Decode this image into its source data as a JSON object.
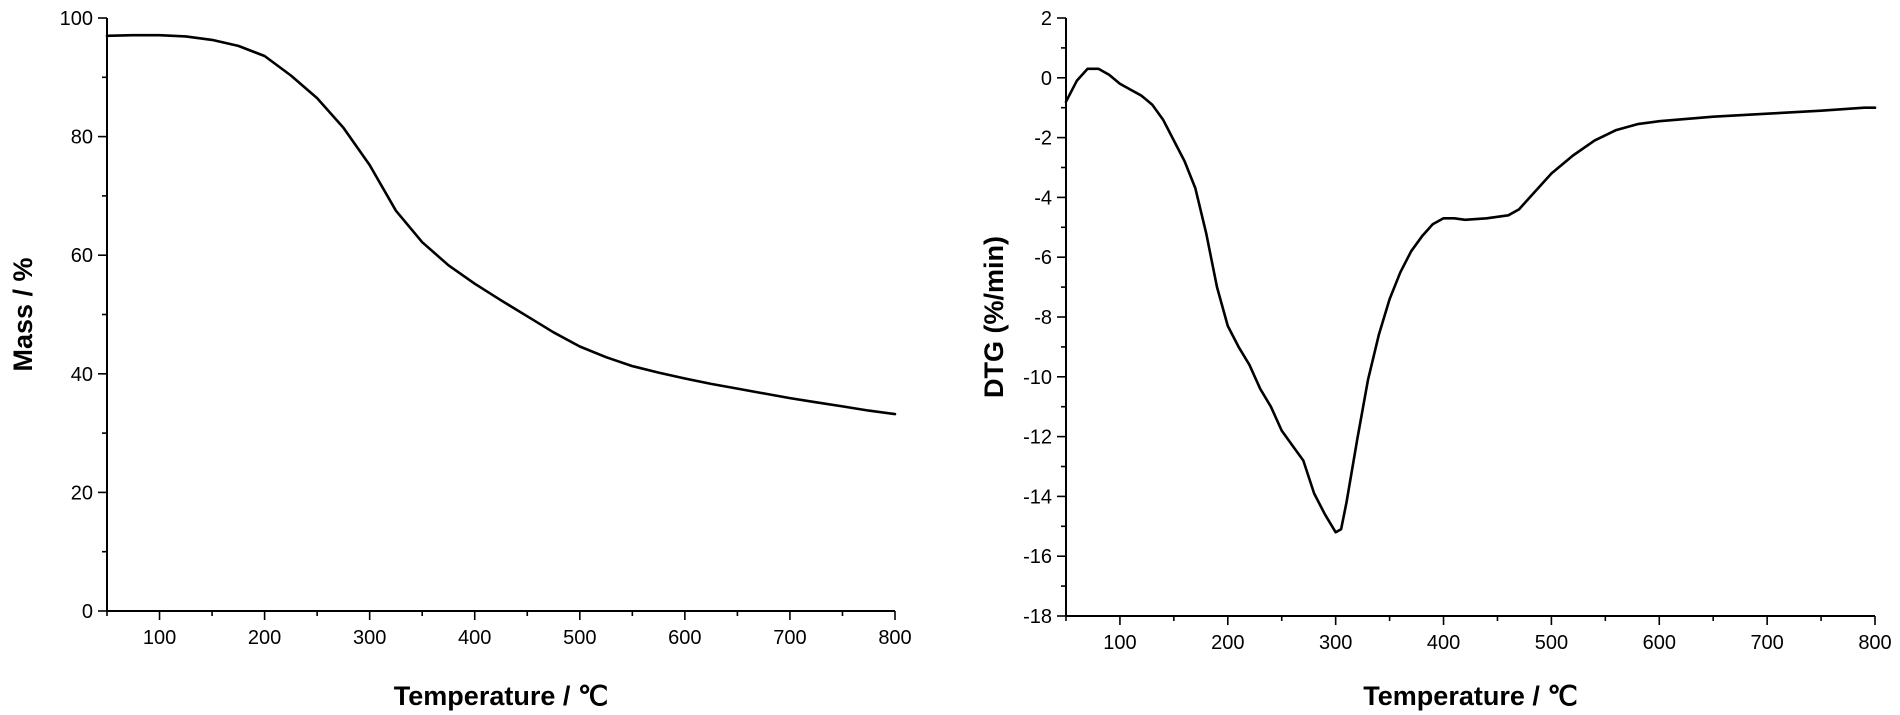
{
  "chart_data": [
    {
      "type": "line",
      "title": "",
      "xlabel": "Temperature / ℃",
      "ylabel": "Mass / %",
      "xlim": [
        50,
        800
      ],
      "ylim": [
        0,
        100
      ],
      "xticks": [
        100,
        200,
        300,
        400,
        500,
        600,
        700,
        800
      ],
      "xtick_labels": [
        "100",
        "200",
        "300",
        "400",
        "500",
        "600",
        "700",
        "800"
      ],
      "yticks": [
        0,
        20,
        40,
        60,
        80,
        100
      ],
      "ytick_labels": [
        "0",
        "20",
        "40",
        "60",
        "80",
        "100"
      ],
      "grid": false,
      "series": [
        {
          "x": [
            50,
            75,
            100,
            125,
            150,
            175,
            200,
            225,
            250,
            275,
            300,
            325,
            350,
            375,
            400,
            425,
            450,
            475,
            500,
            525,
            550,
            575,
            600,
            625,
            650,
            675,
            700,
            725,
            750,
            775,
            800
          ],
          "y": [
            97.0,
            97.1,
            97.1,
            96.9,
            96.3,
            95.3,
            93.6,
            90.3,
            86.5,
            81.5,
            75.2,
            67.5,
            62.2,
            58.3,
            55.2,
            52.4,
            49.7,
            47.0,
            44.6,
            42.8,
            41.3,
            40.2,
            39.2,
            38.3,
            37.5,
            36.7,
            35.9,
            35.2,
            34.5,
            33.8,
            33.2
          ]
        }
      ]
    },
    {
      "type": "line",
      "title": "",
      "xlabel": "Temperature / ℃",
      "ylabel": "DTG (%/min)",
      "xlim": [
        50,
        800
      ],
      "ylim": [
        -18,
        2
      ],
      "xticks": [
        100,
        200,
        300,
        400,
        500,
        600,
        700,
        800
      ],
      "xtick_labels": [
        "100",
        "200",
        "300",
        "400",
        "500",
        "600",
        "700",
        "800"
      ],
      "yticks": [
        -18,
        -16,
        -14,
        -12,
        -10,
        -8,
        -6,
        -4,
        -2,
        0,
        2
      ],
      "ytick_labels": [
        "-18",
        "-16",
        "-14",
        "-12",
        "-10",
        "-8",
        "-6",
        "-4",
        "-2",
        "0",
        "2"
      ],
      "grid": false,
      "series": [
        {
          "x": [
            50,
            60,
            70,
            80,
            90,
            100,
            110,
            120,
            130,
            140,
            150,
            160,
            170,
            180,
            190,
            200,
            210,
            220,
            230,
            240,
            250,
            260,
            270,
            280,
            290,
            300,
            305,
            310,
            320,
            330,
            340,
            350,
            360,
            370,
            380,
            390,
            400,
            410,
            420,
            440,
            460,
            470,
            480,
            500,
            520,
            540,
            560,
            580,
            600,
            650,
            700,
            750,
            790,
            795,
            800
          ],
          "y": [
            -0.8,
            -0.1,
            0.3,
            0.3,
            0.1,
            -0.2,
            -0.4,
            -0.6,
            -0.9,
            -1.4,
            -2.1,
            -2.8,
            -3.7,
            -5.2,
            -7.0,
            -8.3,
            -9.0,
            -9.6,
            -10.4,
            -11.0,
            -11.8,
            -12.3,
            -12.8,
            -13.9,
            -14.6,
            -15.2,
            -15.1,
            -14.2,
            -12.1,
            -10.1,
            -8.6,
            -7.4,
            -6.5,
            -5.8,
            -5.3,
            -4.9,
            -4.7,
            -4.7,
            -4.75,
            -4.7,
            -4.6,
            -4.4,
            -4.0,
            -3.2,
            -2.6,
            -2.1,
            -1.75,
            -1.55,
            -1.45,
            -1.3,
            -1.2,
            -1.1,
            -1.0,
            -1.0,
            -1.0
          ]
        }
      ]
    }
  ]
}
